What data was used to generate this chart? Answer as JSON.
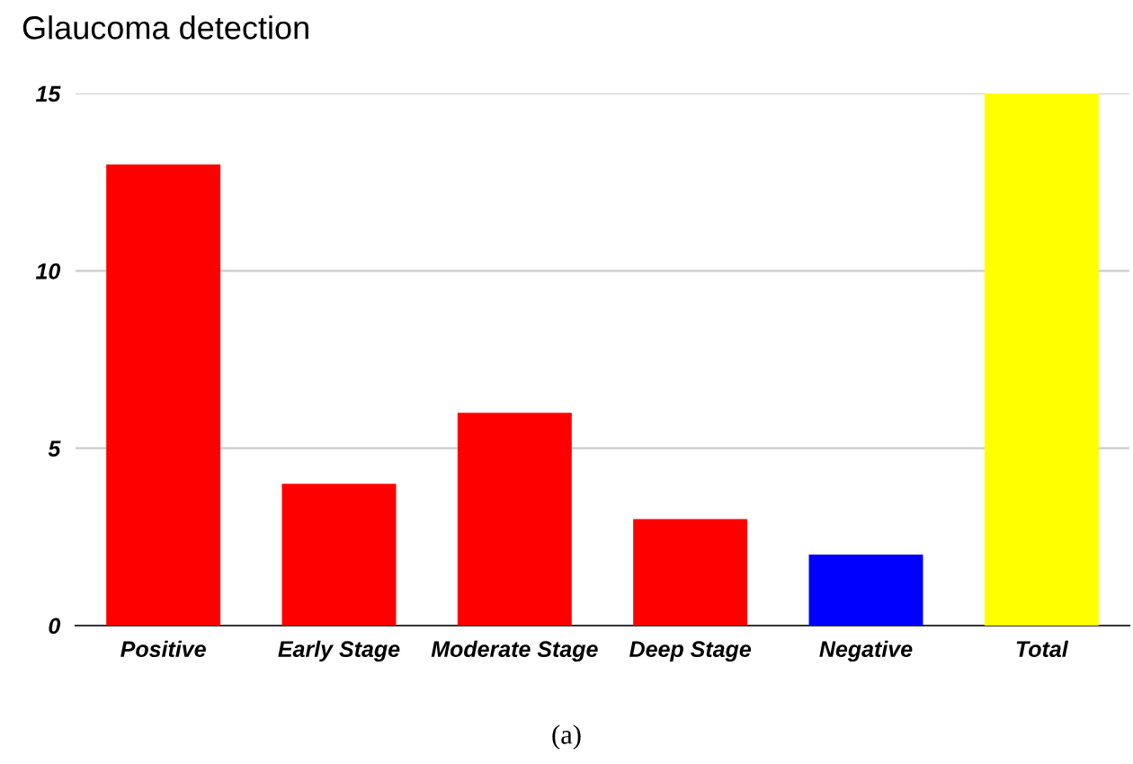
{
  "chart_data": {
    "type": "bar",
    "title": "Glaucoma detection",
    "categories": [
      "Positive",
      "Early Stage",
      "Moderate Stage",
      "Deep Stage",
      "Negative",
      "Total"
    ],
    "values": [
      13,
      4,
      6,
      3,
      2,
      15
    ],
    "colors": [
      "#ff0000",
      "#ff0000",
      "#ff0000",
      "#ff0000",
      "#0000ff",
      "#ffff00"
    ],
    "ylim": [
      0,
      15
    ],
    "yticks": [
      0,
      5,
      10,
      15
    ],
    "grid": "y",
    "annotations": [
      "(a)"
    ]
  }
}
